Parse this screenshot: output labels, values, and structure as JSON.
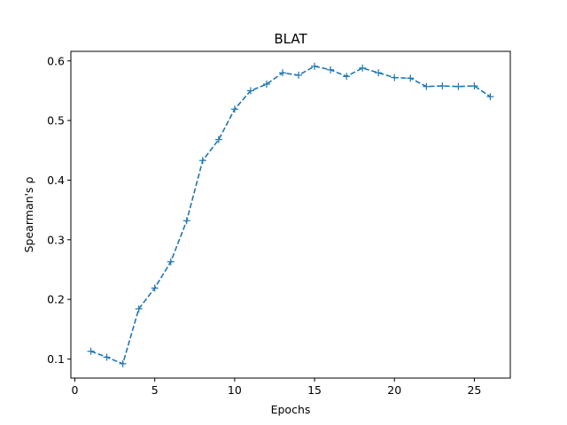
{
  "chart_data": {
    "type": "line",
    "title": "BLAT",
    "xlabel": "Epochs",
    "ylabel": "Spearman's ρ",
    "xlim": [
      -0.25,
      27.25
    ],
    "ylim": [
      0.068,
      0.616
    ],
    "xticks": [
      0,
      5,
      10,
      15,
      20,
      25
    ],
    "yticks": [
      0.1,
      0.2,
      0.3,
      0.4,
      0.5,
      0.6
    ],
    "grid": false,
    "series": [
      {
        "color": "#1f77b4",
        "line_style": "dashed",
        "marker": "+",
        "x": [
          1,
          2,
          3,
          4,
          5,
          6,
          7,
          8,
          9,
          10,
          11,
          12,
          13,
          14,
          15,
          16,
          17,
          18,
          19,
          20,
          21,
          22,
          23,
          24,
          25,
          26
        ],
        "y": [
          0.113,
          0.103,
          0.092,
          0.184,
          0.219,
          0.263,
          0.332,
          0.433,
          0.468,
          0.519,
          0.55,
          0.561,
          0.58,
          0.576,
          0.591,
          0.585,
          0.574,
          0.588,
          0.58,
          0.572,
          0.571,
          0.557,
          0.558,
          0.557,
          0.558,
          0.54
        ]
      }
    ]
  }
}
